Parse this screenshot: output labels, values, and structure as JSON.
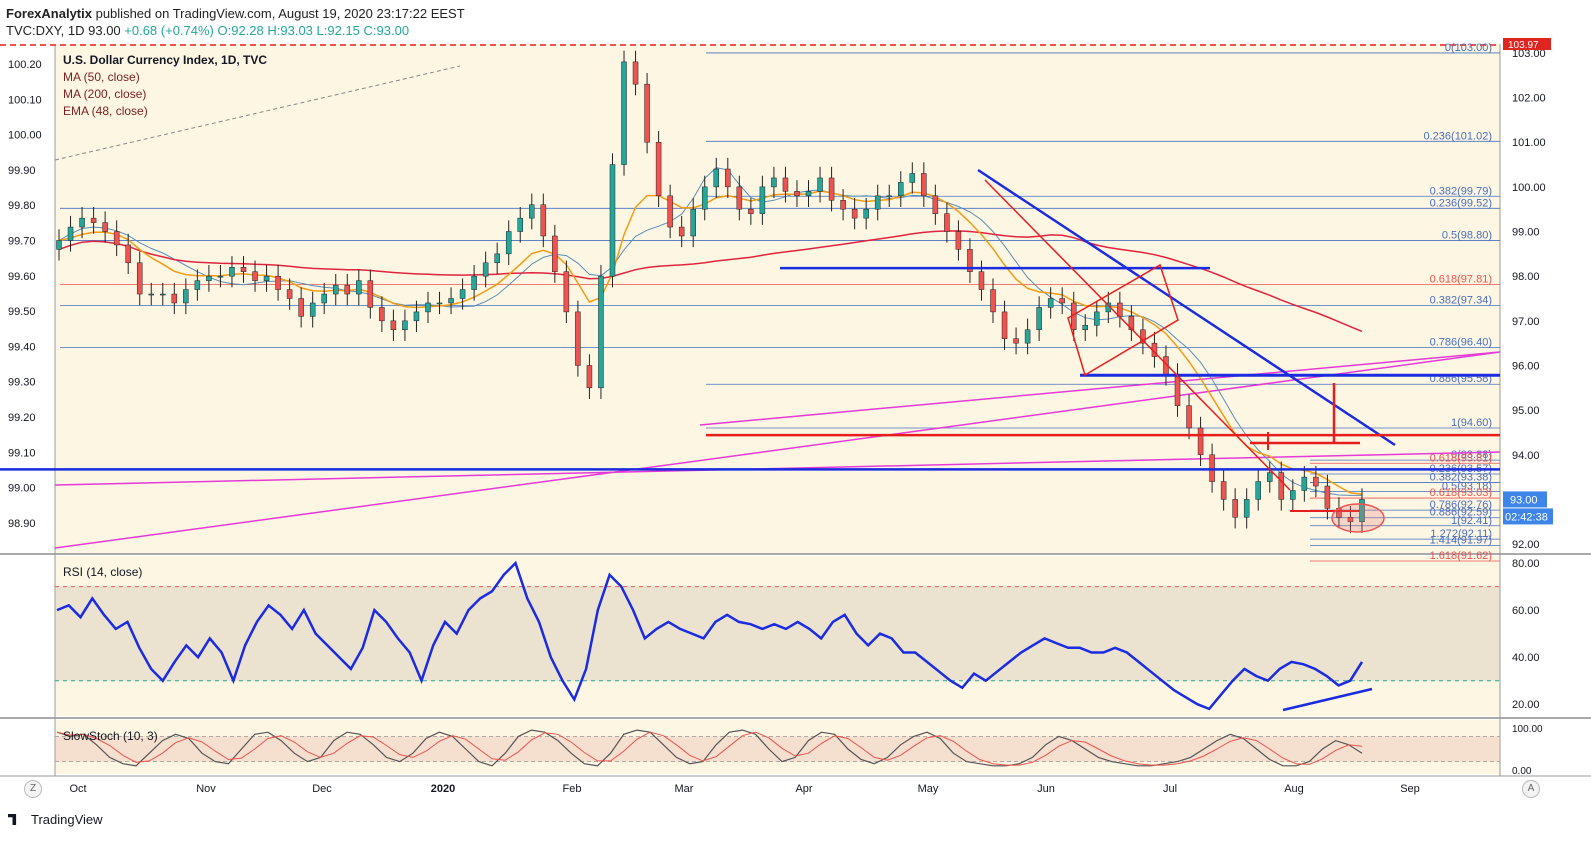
{
  "header": {
    "publisher": "ForexAnalytix",
    "published_text": " published on TradingView.com, August 19, 2020 23:17:22 EEST",
    "symbol_line_pre": "TVC:DXY, 1D 93.00 ",
    "change": "+0.68 (+0.74%)",
    "open": " O:92.28",
    "high": " H:93.03",
    "low": " L:92.15",
    "close": " C:93.00"
  },
  "legend": {
    "title": "U.S. Dollar Currency Index, 1D, TVC",
    "ma50": "MA (50, close)",
    "ma200": "MA (200, close)",
    "ema48": "EMA (48, close)",
    "rsi": "RSI (14, close)",
    "stoch": "SlowStoch (10, 3)"
  },
  "footer": {
    "brand": "TradingView",
    "z_button": "Z",
    "a_button": "A"
  },
  "colors": {
    "background": "#fdf6e3",
    "candle_up": "#26a69a",
    "candle_down": "#ef5350",
    "fib_line": "#4a6fc0",
    "trend_blue": "#1a2be0",
    "trend_red": "#e81d1d",
    "trend_magenta": "#e63ad8",
    "ma50": "#5a8fb8",
    "ma200": "#e0243f",
    "ema48": "#f39c12",
    "rsi": "#1a2be0"
  },
  "chart_data": [
    {
      "type": "candlestick",
      "title": "U.S. Dollar Currency Index, 1D, TVC",
      "x_labels": [
        "Oct",
        "Nov",
        "Dec",
        "2020",
        "Feb",
        "Mar",
        "Apr",
        "May",
        "Jun",
        "Jul",
        "Aug",
        "Sep"
      ],
      "left_axis_ticks": [
        "100.20",
        "100.10",
        "100.00",
        "99.90",
        "99.80",
        "99.70",
        "99.60",
        "99.50",
        "99.40",
        "99.30",
        "99.20",
        "99.10",
        "99.00",
        "98.90"
      ],
      "right_axis_ticks": [
        "103.00",
        "102.00",
        "101.00",
        "100.00",
        "99.00",
        "98.00",
        "97.00",
        "96.00",
        "95.00",
        "94.00",
        "93.00",
        "92.00"
      ],
      "right_axis_range": [
        91.8,
        103.2
      ],
      "last_price": "93.00",
      "countdown": "02:42:38",
      "top_price_flag": "103.97",
      "closes_approx": [
        98.8,
        99.1,
        99.3,
        99.2,
        99.0,
        98.7,
        98.3,
        97.6,
        97.6,
        97.6,
        97.4,
        97.7,
        97.9,
        98.0,
        98.0,
        98.2,
        98.1,
        97.9,
        98.0,
        97.7,
        97.5,
        97.1,
        97.4,
        97.6,
        97.8,
        97.6,
        97.9,
        97.3,
        97.0,
        96.8,
        97.0,
        97.2,
        97.4,
        97.4,
        97.5,
        97.7,
        98.0,
        98.3,
        98.5,
        99.0,
        99.3,
        99.6,
        98.9,
        98.1,
        97.2,
        96.0,
        95.5,
        98.0,
        100.5,
        102.8,
        102.3,
        101.0,
        99.8,
        99.1,
        98.9,
        99.5,
        100.0,
        100.4,
        100.0,
        99.5,
        99.4,
        100.0,
        100.2,
        99.9,
        99.8,
        99.9,
        100.2,
        99.7,
        99.5,
        99.3,
        99.5,
        99.8,
        99.8,
        100.1,
        100.3,
        99.8,
        99.4,
        99.0,
        98.6,
        98.1,
        97.7,
        97.2,
        96.6,
        96.5,
        96.8,
        97.3,
        97.5,
        97.4,
        96.8,
        96.9,
        97.2,
        97.4,
        97.1,
        96.8,
        96.5,
        96.2,
        95.8,
        95.1,
        94.6,
        94.0,
        93.4,
        93.0,
        92.6,
        93.0,
        93.4,
        93.6,
        93.0,
        93.2,
        93.5,
        93.3,
        92.8,
        92.6,
        92.5,
        93.0
      ],
      "fib_levels": [
        {
          "label": "0(103.00)",
          "value": 103.0
        },
        {
          "label": "0.236(101.02)",
          "value": 101.02
        },
        {
          "label": "0.382(99.79)",
          "value": 99.79
        },
        {
          "label": "0.236(99.52)",
          "value": 99.52
        },
        {
          "label": "0.5(98.80)",
          "value": 98.8
        },
        {
          "label": "0.618(97.81)",
          "value": 97.81
        },
        {
          "label": "0.382(97.34)",
          "value": 97.34
        },
        {
          "label": "0.786(96.40)",
          "value": 96.4
        },
        {
          "label": "0.886(95.58)",
          "value": 95.58
        },
        {
          "label": "1(94.60)",
          "value": 94.6
        },
        {
          "label": "0(93.88)",
          "value": 93.88
        },
        {
          "label": "0.618(93.81)",
          "value": 93.81
        },
        {
          "label": "0.236(93.57)",
          "value": 93.57
        },
        {
          "label": "0.382(93.38)",
          "value": 93.38
        },
        {
          "label": "0.5(93.18)",
          "value": 93.18
        },
        {
          "label": "0.618(93.03)",
          "value": 93.03
        },
        {
          "label": "0.786(92.76)",
          "value": 92.76
        },
        {
          "label": "0.886(92.59)",
          "value": 92.59
        },
        {
          "label": "1(92.41)",
          "value": 92.41
        },
        {
          "label": "1.272(92.11)",
          "value": 92.11
        },
        {
          "label": "1.414(91.97)",
          "value": 91.97
        },
        {
          "label": "1.618(91.62)",
          "value": 91.62
        }
      ]
    },
    {
      "type": "line",
      "title": "RSI (14, close)",
      "y_ticks": [
        "80.00",
        "60.00",
        "40.00",
        "20.00"
      ],
      "ylim": [
        15,
        83
      ],
      "overbought": 70,
      "oversold": 30,
      "values_approx": [
        60,
        62,
        57,
        65,
        58,
        52,
        55,
        44,
        35,
        30,
        38,
        45,
        40,
        48,
        42,
        30,
        45,
        55,
        62,
        58,
        52,
        60,
        50,
        45,
        40,
        35,
        44,
        60,
        55,
        48,
        42,
        30,
        45,
        55,
        50,
        60,
        65,
        68,
        75,
        80,
        65,
        55,
        40,
        30,
        22,
        35,
        60,
        75,
        70,
        60,
        48,
        52,
        55,
        52,
        50,
        48,
        55,
        58,
        55,
        54,
        52,
        54,
        52,
        55,
        52,
        48,
        55,
        58,
        50,
        45,
        50,
        48,
        42,
        42,
        38,
        34,
        30,
        27,
        33,
        30,
        34,
        38,
        42,
        45,
        48,
        46,
        44,
        44,
        42,
        42,
        44,
        42,
        38,
        34,
        30,
        26,
        23,
        20,
        18,
        24,
        30,
        35,
        32,
        30,
        35,
        38,
        37,
        35,
        32,
        28,
        30,
        38
      ]
    },
    {
      "type": "line",
      "title": "SlowStoch (10, 3)",
      "y_ticks": [
        "100.00",
        "0.00"
      ],
      "ylim": [
        0,
        100
      ],
      "values_approx": [
        90,
        80,
        85,
        60,
        30,
        15,
        10,
        40,
        70,
        85,
        75,
        40,
        20,
        15,
        50,
        85,
        90,
        70,
        40,
        20,
        30,
        70,
        90,
        85,
        60,
        30,
        20,
        40,
        75,
        90,
        80,
        50,
        20,
        10,
        40,
        80,
        95,
        90,
        70,
        40,
        15,
        10,
        40,
        85,
        95,
        90,
        60,
        30,
        15,
        20,
        60,
        90,
        95,
        85,
        50,
        20,
        30,
        70,
        90,
        85,
        50,
        25,
        15,
        30,
        60,
        80,
        90,
        75,
        40,
        20,
        15,
        10,
        10,
        15,
        30,
        60,
        80,
        70,
        50,
        30,
        20,
        15,
        10,
        10,
        15,
        20,
        30,
        50,
        70,
        85,
        75,
        50,
        25,
        10,
        10,
        20,
        50,
        70,
        60,
        40
      ]
    }
  ]
}
